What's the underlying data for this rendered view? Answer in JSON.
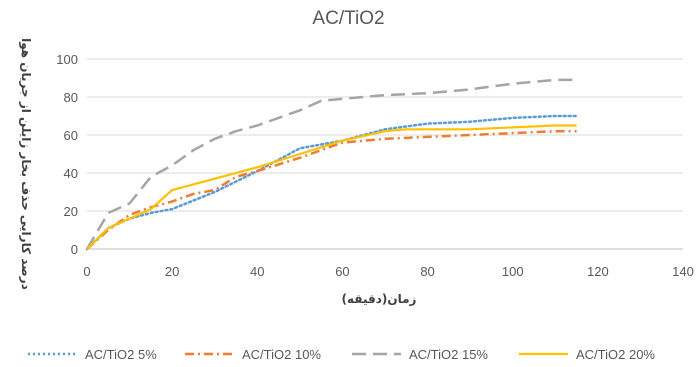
{
  "chart_data": {
    "type": "line",
    "title": "AC/TiO2",
    "xlabel": "زمان(دقیقه)",
    "ylabel": "درصد کارایی حذف بخار زایلن از جریان هوا",
    "xlim": [
      0,
      140
    ],
    "ylim": [
      0,
      100
    ],
    "xticks": [
      0,
      20,
      40,
      60,
      80,
      100,
      120,
      140
    ],
    "yticks": [
      0,
      20,
      40,
      60,
      80,
      100
    ],
    "grid": "horizontal",
    "legend_position": "bottom",
    "series": [
      {
        "name": "AC/TiO2 5%",
        "color": "#5B9BD5",
        "dash": "dotted",
        "x": [
          0,
          5,
          10,
          15,
          20,
          30,
          40,
          50,
          60,
          70,
          80,
          90,
          100,
          110,
          115
        ],
        "y": [
          0,
          11,
          16,
          19,
          21,
          30,
          41,
          53,
          57,
          63,
          66,
          67,
          69,
          70,
          70
        ]
      },
      {
        "name": "AC/TiO2 10%",
        "color": "#ED7D31",
        "dash": "dashdot",
        "x": [
          0,
          5,
          10,
          15,
          20,
          25,
          30,
          35,
          40,
          50,
          60,
          70,
          80,
          90,
          100,
          110,
          115
        ],
        "y": [
          0,
          10,
          18,
          22,
          25,
          29,
          31,
          38,
          41,
          48,
          56,
          58,
          59,
          60,
          61,
          62,
          62
        ]
      },
      {
        "name": "AC/TiO2 15%",
        "color": "#A5A5A5",
        "dash": "longdash",
        "x": [
          0,
          5,
          10,
          15,
          20,
          25,
          30,
          35,
          40,
          45,
          50,
          55,
          60,
          70,
          80,
          90,
          100,
          105,
          110,
          115
        ],
        "y": [
          0,
          19,
          24,
          38,
          44,
          52,
          58,
          62,
          65,
          69,
          73,
          78,
          79,
          81,
          82,
          84,
          87,
          88,
          89,
          89
        ]
      },
      {
        "name": "AC/TiO2 20%",
        "color": "#FFC000",
        "dash": "solid",
        "x": [
          0,
          5,
          10,
          15,
          20,
          30,
          40,
          50,
          60,
          70,
          75,
          80,
          90,
          100,
          110,
          115
        ],
        "y": [
          0,
          11,
          16,
          21,
          31,
          37,
          43,
          50,
          57,
          62,
          63,
          63,
          63,
          64,
          65,
          65
        ]
      }
    ]
  }
}
